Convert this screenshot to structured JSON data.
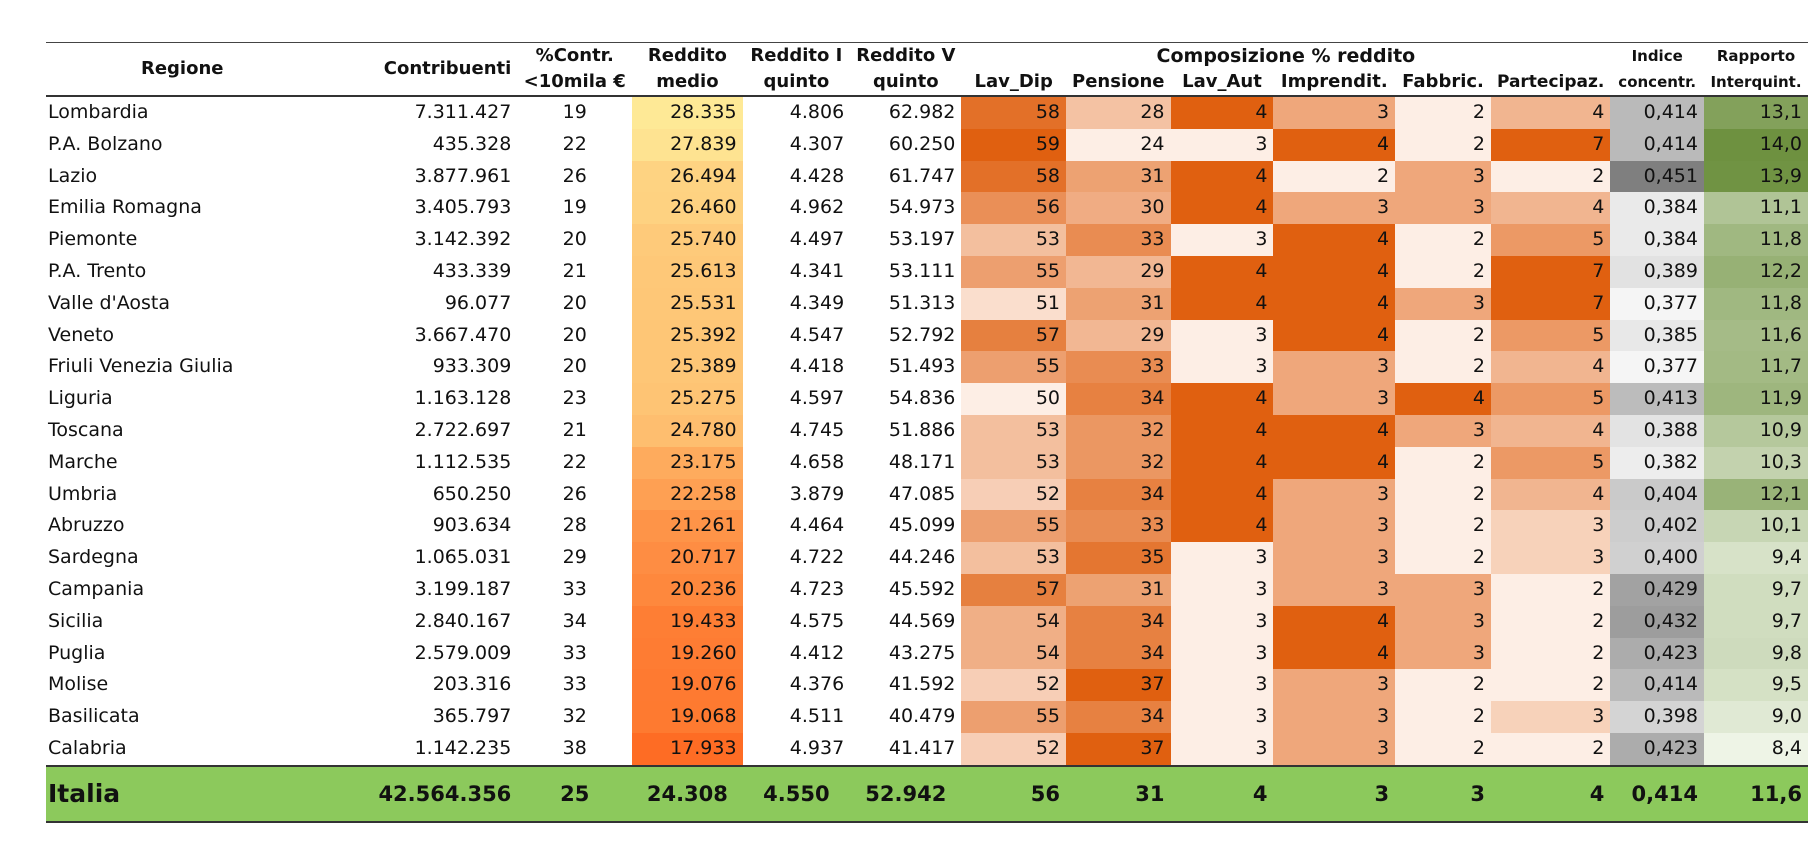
{
  "header": {
    "regione": "Regione",
    "contribuenti": "Contribuenti",
    "contr_l1": "%Contr.",
    "contr_l2": "<10mila €",
    "medio_l1": "Reddito",
    "medio_l2": "medio",
    "i_l1": "Reddito I",
    "i_l2": "quinto",
    "v_l1": "Reddito V",
    "v_l2": "quinto",
    "composizione": "Composizione % reddito",
    "lav_dip": "Lav_Dip",
    "pensione": "Pensione",
    "lav_aut": "Lav_Aut",
    "imprendit": "Imprendit.",
    "fabbric": "Fabbric.",
    "partecipaz": "Partecipaz.",
    "indice_l1": "Indice",
    "indice_l2": "concentr.",
    "rapporto_l1": "Rapporto",
    "rapporto_l2": "Interquint."
  },
  "rows": [
    {
      "regione": "Lombardia",
      "contribuenti": "7.311.427",
      "pct10": "19",
      "medio": "28.335",
      "q1": "4.806",
      "q5": "62.982",
      "lav_dip": "58",
      "pensione": "28",
      "lav_aut": "4",
      "imprendit": "3",
      "fabbric": "2",
      "partecipaz": "4",
      "indice": "0,414",
      "rapporto": "13,1"
    },
    {
      "regione": "P.A. Bolzano",
      "contribuenti": "435.328",
      "pct10": "22",
      "medio": "27.839",
      "q1": "4.307",
      "q5": "60.250",
      "lav_dip": "59",
      "pensione": "24",
      "lav_aut": "3",
      "imprendit": "4",
      "fabbric": "2",
      "partecipaz": "7",
      "indice": "0,414",
      "rapporto": "14,0"
    },
    {
      "regione": "Lazio",
      "contribuenti": "3.877.961",
      "pct10": "26",
      "medio": "26.494",
      "q1": "4.428",
      "q5": "61.747",
      "lav_dip": "58",
      "pensione": "31",
      "lav_aut": "4",
      "imprendit": "2",
      "fabbric": "3",
      "partecipaz": "2",
      "indice": "0,451",
      "rapporto": "13,9"
    },
    {
      "regione": "Emilia Romagna",
      "contribuenti": "3.405.793",
      "pct10": "19",
      "medio": "26.460",
      "q1": "4.962",
      "q5": "54.973",
      "lav_dip": "56",
      "pensione": "30",
      "lav_aut": "4",
      "imprendit": "3",
      "fabbric": "3",
      "partecipaz": "4",
      "indice": "0,384",
      "rapporto": "11,1"
    },
    {
      "regione": "Piemonte",
      "contribuenti": "3.142.392",
      "pct10": "20",
      "medio": "25.740",
      "q1": "4.497",
      "q5": "53.197",
      "lav_dip": "53",
      "pensione": "33",
      "lav_aut": "3",
      "imprendit": "4",
      "fabbric": "2",
      "partecipaz": "5",
      "indice": "0,384",
      "rapporto": "11,8"
    },
    {
      "regione": "P.A. Trento",
      "contribuenti": "433.339",
      "pct10": "21",
      "medio": "25.613",
      "q1": "4.341",
      "q5": "53.111",
      "lav_dip": "55",
      "pensione": "29",
      "lav_aut": "4",
      "imprendit": "4",
      "fabbric": "2",
      "partecipaz": "7",
      "indice": "0,389",
      "rapporto": "12,2"
    },
    {
      "regione": "Valle d'Aosta",
      "contribuenti": "96.077",
      "pct10": "20",
      "medio": "25.531",
      "q1": "4.349",
      "q5": "51.313",
      "lav_dip": "51",
      "pensione": "31",
      "lav_aut": "4",
      "imprendit": "4",
      "fabbric": "3",
      "partecipaz": "7",
      "indice": "0,377",
      "rapporto": "11,8"
    },
    {
      "regione": "Veneto",
      "contribuenti": "3.667.470",
      "pct10": "20",
      "medio": "25.392",
      "q1": "4.547",
      "q5": "52.792",
      "lav_dip": "57",
      "pensione": "29",
      "lav_aut": "3",
      "imprendit": "4",
      "fabbric": "2",
      "partecipaz": "5",
      "indice": "0,385",
      "rapporto": "11,6"
    },
    {
      "regione": "Friuli Venezia Giulia",
      "contribuenti": "933.309",
      "pct10": "20",
      "medio": "25.389",
      "q1": "4.418",
      "q5": "51.493",
      "lav_dip": "55",
      "pensione": "33",
      "lav_aut": "3",
      "imprendit": "3",
      "fabbric": "2",
      "partecipaz": "4",
      "indice": "0,377",
      "rapporto": "11,7"
    },
    {
      "regione": "Liguria",
      "contribuenti": "1.163.128",
      "pct10": "23",
      "medio": "25.275",
      "q1": "4.597",
      "q5": "54.836",
      "lav_dip": "50",
      "pensione": "34",
      "lav_aut": "4",
      "imprendit": "3",
      "fabbric": "4",
      "partecipaz": "5",
      "indice": "0,413",
      "rapporto": "11,9"
    },
    {
      "regione": "Toscana",
      "contribuenti": "2.722.697",
      "pct10": "21",
      "medio": "24.780",
      "q1": "4.745",
      "q5": "51.886",
      "lav_dip": "53",
      "pensione": "32",
      "lav_aut": "4",
      "imprendit": "4",
      "fabbric": "3",
      "partecipaz": "4",
      "indice": "0,388",
      "rapporto": "10,9"
    },
    {
      "regione": "Marche",
      "contribuenti": "1.112.535",
      "pct10": "22",
      "medio": "23.175",
      "q1": "4.658",
      "q5": "48.171",
      "lav_dip": "53",
      "pensione": "32",
      "lav_aut": "4",
      "imprendit": "4",
      "fabbric": "2",
      "partecipaz": "5",
      "indice": "0,382",
      "rapporto": "10,3"
    },
    {
      "regione": "Umbria",
      "contribuenti": "650.250",
      "pct10": "26",
      "medio": "22.258",
      "q1": "3.879",
      "q5": "47.085",
      "lav_dip": "52",
      "pensione": "34",
      "lav_aut": "4",
      "imprendit": "3",
      "fabbric": "2",
      "partecipaz": "4",
      "indice": "0,404",
      "rapporto": "12,1"
    },
    {
      "regione": "Abruzzo",
      "contribuenti": "903.634",
      "pct10": "28",
      "medio": "21.261",
      "q1": "4.464",
      "q5": "45.099",
      "lav_dip": "55",
      "pensione": "33",
      "lav_aut": "4",
      "imprendit": "3",
      "fabbric": "2",
      "partecipaz": "3",
      "indice": "0,402",
      "rapporto": "10,1"
    },
    {
      "regione": "Sardegna",
      "contribuenti": "1.065.031",
      "pct10": "29",
      "medio": "20.717",
      "q1": "4.722",
      "q5": "44.246",
      "lav_dip": "53",
      "pensione": "35",
      "lav_aut": "3",
      "imprendit": "3",
      "fabbric": "2",
      "partecipaz": "3",
      "indice": "0,400",
      "rapporto": "9,4"
    },
    {
      "regione": "Campania",
      "contribuenti": "3.199.187",
      "pct10": "33",
      "medio": "20.236",
      "q1": "4.723",
      "q5": "45.592",
      "lav_dip": "57",
      "pensione": "31",
      "lav_aut": "3",
      "imprendit": "3",
      "fabbric": "3",
      "partecipaz": "2",
      "indice": "0,429",
      "rapporto": "9,7"
    },
    {
      "regione": "Sicilia",
      "contribuenti": "2.840.167",
      "pct10": "34",
      "medio": "19.433",
      "q1": "4.575",
      "q5": "44.569",
      "lav_dip": "54",
      "pensione": "34",
      "lav_aut": "3",
      "imprendit": "4",
      "fabbric": "3",
      "partecipaz": "2",
      "indice": "0,432",
      "rapporto": "9,7"
    },
    {
      "regione": "Puglia",
      "contribuenti": "2.579.009",
      "pct10": "33",
      "medio": "19.260",
      "q1": "4.412",
      "q5": "43.275",
      "lav_dip": "54",
      "pensione": "34",
      "lav_aut": "3",
      "imprendit": "4",
      "fabbric": "3",
      "partecipaz": "2",
      "indice": "0,423",
      "rapporto": "9,8"
    },
    {
      "regione": "Molise",
      "contribuenti": "203.316",
      "pct10": "33",
      "medio": "19.076",
      "q1": "4.376",
      "q5": "41.592",
      "lav_dip": "52",
      "pensione": "37",
      "lav_aut": "3",
      "imprendit": "3",
      "fabbric": "2",
      "partecipaz": "2",
      "indice": "0,414",
      "rapporto": "9,5"
    },
    {
      "regione": "Basilicata",
      "contribuenti": "365.797",
      "pct10": "32",
      "medio": "19.068",
      "q1": "4.511",
      "q5": "40.479",
      "lav_dip": "55",
      "pensione": "34",
      "lav_aut": "3",
      "imprendit": "3",
      "fabbric": "2",
      "partecipaz": "3",
      "indice": "0,398",
      "rapporto": "9,0"
    },
    {
      "regione": "Calabria",
      "contribuenti": "1.142.235",
      "pct10": "38",
      "medio": "17.933",
      "q1": "4.937",
      "q5": "41.417",
      "lav_dip": "52",
      "pensione": "37",
      "lav_aut": "3",
      "imprendit": "3",
      "fabbric": "2",
      "partecipaz": "2",
      "indice": "0,423",
      "rapporto": "8,4"
    }
  ],
  "total": {
    "regione": "Italia",
    "contribuenti": "42.564.356",
    "pct10": "25",
    "medio": "24.308",
    "q1": "4.550",
    "q5": "52.942",
    "lav_dip": "56",
    "pensione": "31",
    "lav_aut": "4",
    "imprendit": "3",
    "fabbric": "3",
    "partecipaz": "4",
    "indice": "0,414",
    "rapporto": "11,6"
  },
  "colors": {
    "medio_low": "#fe6c24",
    "medio_high": "#fee996",
    "comp_low": "#fdeee5",
    "comp_high": "#e06010",
    "indice_low": "#f5f5f5",
    "indice_high": "#7f7f7f",
    "rapporto_low": "#eef4e6",
    "rapporto_high": "#6e9140",
    "total_bg": "#8cc95c"
  }
}
